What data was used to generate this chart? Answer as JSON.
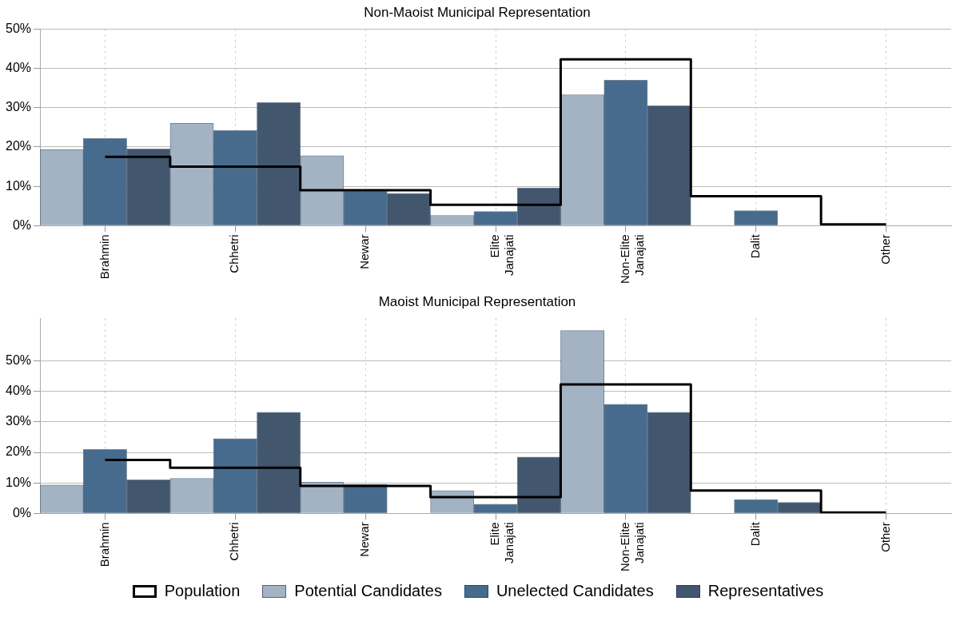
{
  "chart_data": [
    {
      "type": "bar",
      "title": "Non-Maoist Municipal Representation",
      "categories": [
        "Brahmin",
        "Chhetri",
        "Newar",
        "Elite\nJanajati",
        "Non-Elite\nJanajati",
        "Dalit",
        "Other"
      ],
      "series": [
        {
          "type": "step",
          "color": "#000000",
          "values": [
            17.5,
            15,
            9,
            5.3,
            42.3,
            7.5,
            0.3
          ]
        },
        {
          "color": "#a3b3c4",
          "values": [
            19.3,
            26,
            17.8,
            2.6,
            33.3,
            0,
            0
          ]
        },
        {
          "color": "#476b8c",
          "values": [
            22.2,
            24.2,
            8.8,
            3.6,
            37,
            3.8,
            0
          ]
        },
        {
          "color": "#42576e",
          "values": [
            19.5,
            31.3,
            8.2,
            9.6,
            30.5,
            0,
            0
          ]
        }
      ],
      "ylim": [
        0,
        50
      ],
      "yticks": [
        {
          "value": 0,
          "label": "0%"
        },
        {
          "value": 10,
          "label": "10%"
        },
        {
          "value": 20,
          "label": "20%"
        },
        {
          "value": 30,
          "label": "30%"
        },
        {
          "value": 40,
          "label": "40%"
        },
        {
          "value": 50,
          "label": "50%"
        }
      ],
      "grid": true
    },
    {
      "type": "bar",
      "title": "Maoist Municipal Representation",
      "categories": [
        "Brahmin",
        "Chhetri",
        "Newar",
        "Elite\nJanajati",
        "Non-Elite\nJanajati",
        "Dalit",
        "Other"
      ],
      "series": [
        {
          "name": "Population",
          "type": "step",
          "color": "#000000",
          "values": [
            17.5,
            15,
            9,
            5.3,
            42.3,
            7.5,
            0.3
          ]
        },
        {
          "name": "Potential Candidates",
          "color": "#a3b3c4",
          "values": [
            9.3,
            11.5,
            10.2,
            7.5,
            60,
            0,
            0
          ]
        },
        {
          "name": "Unelected Candidates",
          "color": "#476b8c",
          "values": [
            21,
            24.5,
            9.5,
            3,
            35.8,
            4.5,
            0
          ]
        },
        {
          "name": "Representatives",
          "color": "#42576e",
          "values": [
            11,
            33.2,
            0,
            18.5,
            33.2,
            3.6,
            0
          ]
        }
      ],
      "ylim": [
        0,
        64
      ],
      "yticks": [
        {
          "value": 0,
          "label": "0%"
        },
        {
          "value": 10,
          "label": "10%"
        },
        {
          "value": 20,
          "label": "20%"
        },
        {
          "value": 30,
          "label": "30%"
        },
        {
          "value": 40,
          "label": "40%"
        },
        {
          "value": 50,
          "label": "50%"
        }
      ],
      "grid": true,
      "legend": "bottom"
    }
  ]
}
